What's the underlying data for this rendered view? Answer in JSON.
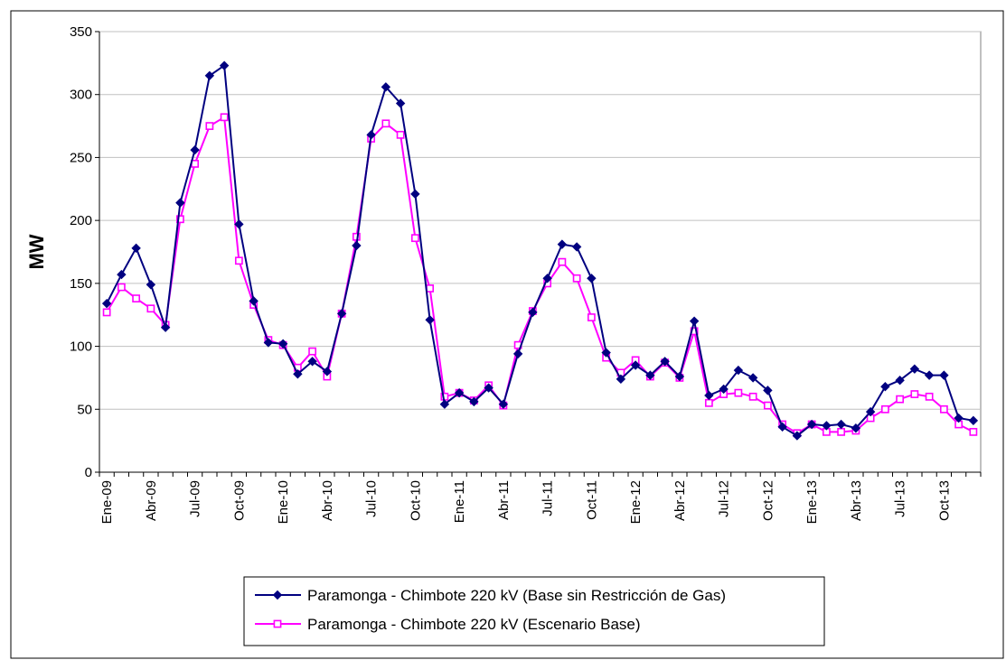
{
  "chart_data": {
    "type": "line",
    "title": "",
    "xlabel": "",
    "ylabel": "MW",
    "ylim": [
      0,
      350
    ],
    "yticks": [
      0,
      50,
      100,
      150,
      200,
      250,
      300,
      350
    ],
    "grid": true,
    "legend_position": "bottom",
    "x": [
      "Ene-09",
      "Feb-09",
      "Mar-09",
      "Abr-09",
      "May-09",
      "Jun-09",
      "Jul-09",
      "Ago-09",
      "Sep-09",
      "Oct-09",
      "Nov-09",
      "Dic-09",
      "Ene-10",
      "Feb-10",
      "Mar-10",
      "Abr-10",
      "May-10",
      "Jun-10",
      "Jul-10",
      "Ago-10",
      "Sep-10",
      "Oct-10",
      "Nov-10",
      "Dic-10",
      "Ene-11",
      "Feb-11",
      "Mar-11",
      "Abr-11",
      "May-11",
      "Jun-11",
      "Jul-11",
      "Ago-11",
      "Sep-11",
      "Oct-11",
      "Nov-11",
      "Dic-11",
      "Ene-12",
      "Feb-12",
      "Mar-12",
      "Abr-12",
      "May-12",
      "Jun-12",
      "Jul-12",
      "Ago-12",
      "Sep-12",
      "Oct-12",
      "Nov-12",
      "Dic-12",
      "Ene-13",
      "Feb-13",
      "Mar-13",
      "Abr-13",
      "May-13",
      "Jun-13",
      "Jul-13",
      "Ago-13",
      "Sep-13",
      "Oct-13",
      "Nov-13",
      "Dic-13"
    ],
    "xtick_labels": [
      "Ene-09",
      "Abr-09",
      "Jul-09",
      "Oct-09",
      "Ene-10",
      "Abr-10",
      "Jul-10",
      "Oct-10",
      "Ene-11",
      "Abr-11",
      "Jul-11",
      "Oct-11",
      "Ene-12",
      "Abr-12",
      "Jul-12",
      "Oct-12",
      "Ene-13",
      "Abr-13",
      "Jul-13",
      "Oct-13"
    ],
    "series": [
      {
        "name": "Paramonga - Chimbote 220 kV (Base sin Restricción de Gas)",
        "color": "#000080",
        "marker": "diamond",
        "values": [
          134,
          157,
          178,
          149,
          115,
          214,
          256,
          315,
          323,
          197,
          136,
          103,
          102,
          78,
          88,
          80,
          126,
          180,
          268,
          306,
          293,
          221,
          121,
          54,
          63,
          56,
          67,
          54,
          94,
          127,
          154,
          181,
          179,
          154,
          95,
          74,
          85,
          77,
          88,
          76,
          120,
          61,
          66,
          81,
          75,
          65,
          36,
          29,
          38,
          37,
          38,
          35,
          48,
          68,
          73,
          82,
          77,
          77,
          43,
          41
        ]
      },
      {
        "name": "Paramonga - Chimbote 220 kV (Escenario Base)",
        "color": "#ff00ff",
        "marker": "square",
        "values": [
          127,
          147,
          138,
          130,
          117,
          201,
          245,
          275,
          282,
          168,
          133,
          105,
          101,
          83,
          96,
          76,
          126,
          187,
          265,
          277,
          268,
          186,
          146,
          60,
          63,
          57,
          69,
          53,
          101,
          128,
          150,
          167,
          154,
          123,
          91,
          79,
          89,
          76,
          87,
          75,
          112,
          55,
          62,
          63,
          60,
          53,
          38,
          31,
          38,
          32,
          32,
          33,
          43,
          50,
          58,
          62,
          60,
          50,
          38,
          32
        ]
      }
    ]
  }
}
